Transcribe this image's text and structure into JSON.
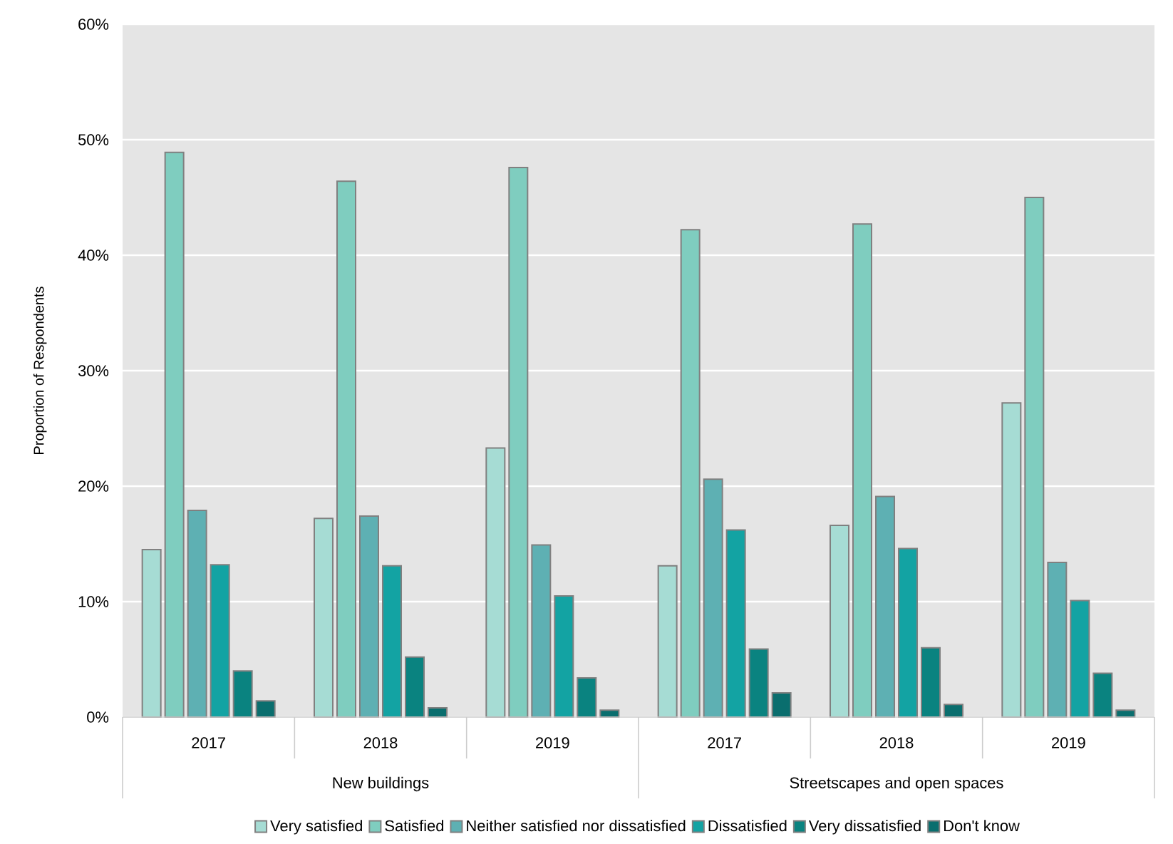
{
  "chart_data": {
    "type": "bar",
    "ylabel": "Proportion of Respondents",
    "categories": [
      "2017",
      "2018",
      "2019",
      "2017",
      "2018",
      "2019"
    ],
    "annotations": [
      "New buildings",
      "Streetscapes and open spaces"
    ],
    "series": [
      {
        "name": "Very satisfied",
        "color": "#a6dcd4",
        "values": [
          14.5,
          17.2,
          23.3,
          13.1,
          16.6,
          27.2
        ]
      },
      {
        "name": "Satisfied",
        "color": "#7fcdbf",
        "values": [
          48.9,
          46.4,
          47.6,
          42.2,
          42.7,
          45.0
        ]
      },
      {
        "name": "Neither satisfied nor dissatisfied",
        "color": "#5eb0b3",
        "values": [
          17.9,
          17.4,
          14.9,
          20.6,
          19.1,
          13.4
        ]
      },
      {
        "name": "Dissatisfied",
        "color": "#13a3a3",
        "values": [
          13.2,
          13.1,
          10.5,
          16.2,
          14.6,
          10.1
        ]
      },
      {
        "name": "Very dissatisfied",
        "color": "#0a8380",
        "values": [
          4.0,
          5.2,
          3.4,
          5.9,
          6.0,
          3.8
        ]
      },
      {
        "name": "Don't know",
        "color": "#0a6e6e",
        "values": [
          1.4,
          0.8,
          0.6,
          2.1,
          1.1,
          0.6
        ]
      }
    ],
    "ylim": [
      0,
      60
    ],
    "yticks": [
      {
        "value": 0,
        "label": "0%"
      },
      {
        "value": 10,
        "label": "10%"
      },
      {
        "value": 20,
        "label": "20%"
      },
      {
        "value": 30,
        "label": "30%"
      },
      {
        "value": 40,
        "label": "40%"
      },
      {
        "value": 50,
        "label": "50%"
      },
      {
        "value": 60,
        "label": "60%"
      }
    ],
    "grid": "y",
    "legend": "bottom"
  }
}
